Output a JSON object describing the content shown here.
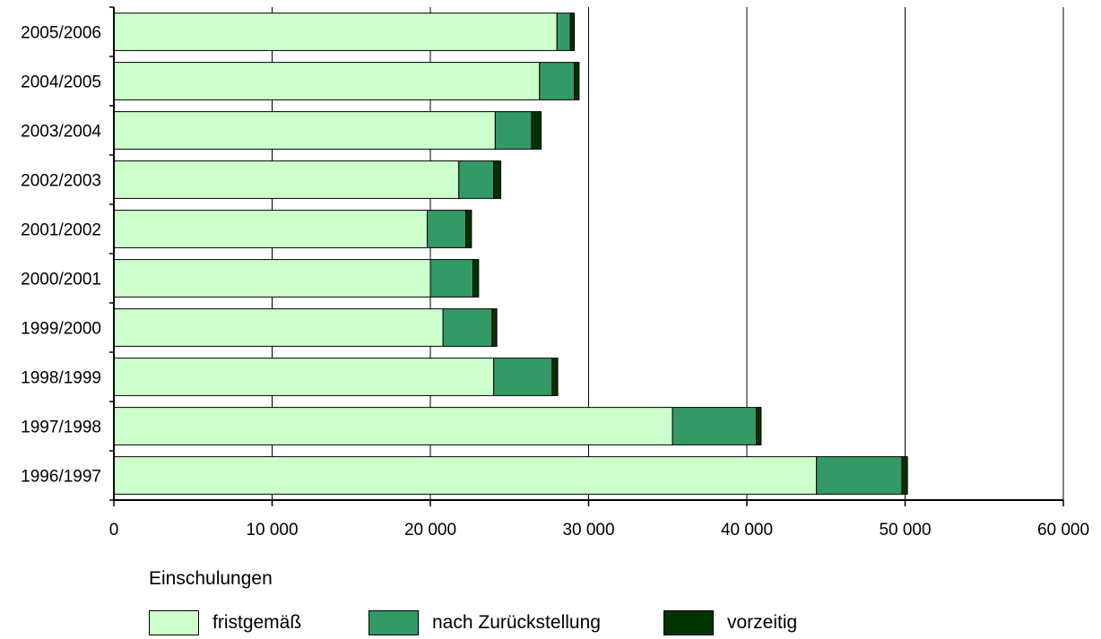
{
  "chart_data": {
    "type": "bar",
    "orientation": "horizontal",
    "stacked": true,
    "categories": [
      "2005/2006",
      "2004/2005",
      "2003/2004",
      "2002/2003",
      "2001/2002",
      "2000/2001",
      "1999/2000",
      "1998/1999",
      "1997/1998",
      "1996/1997"
    ],
    "series": [
      {
        "name": "fristgemäß",
        "color": "#ccffcc",
        "values": [
          28000,
          26900,
          24100,
          21800,
          19800,
          20000,
          20800,
          24000,
          35300,
          44400
        ]
      },
      {
        "name": "nach Zurückstellung",
        "color": "#339966",
        "values": [
          850,
          2200,
          2300,
          2200,
          2450,
          2700,
          3100,
          3700,
          5300,
          5400
        ]
      },
      {
        "name": "vorzeitig",
        "color": "#003300",
        "values": [
          250,
          300,
          600,
          450,
          350,
          350,
          300,
          350,
          300,
          350
        ]
      }
    ],
    "xlim": [
      0,
      60000
    ],
    "xticks": [
      0,
      10000,
      20000,
      30000,
      40000,
      50000,
      60000
    ],
    "xtick_labels": [
      "0",
      "10 000",
      "20 000",
      "30 000",
      "40 000",
      "50 000",
      "60 000"
    ],
    "grid": "vertical",
    "legend": {
      "title": "Einschulungen",
      "placement": "bottom"
    }
  }
}
